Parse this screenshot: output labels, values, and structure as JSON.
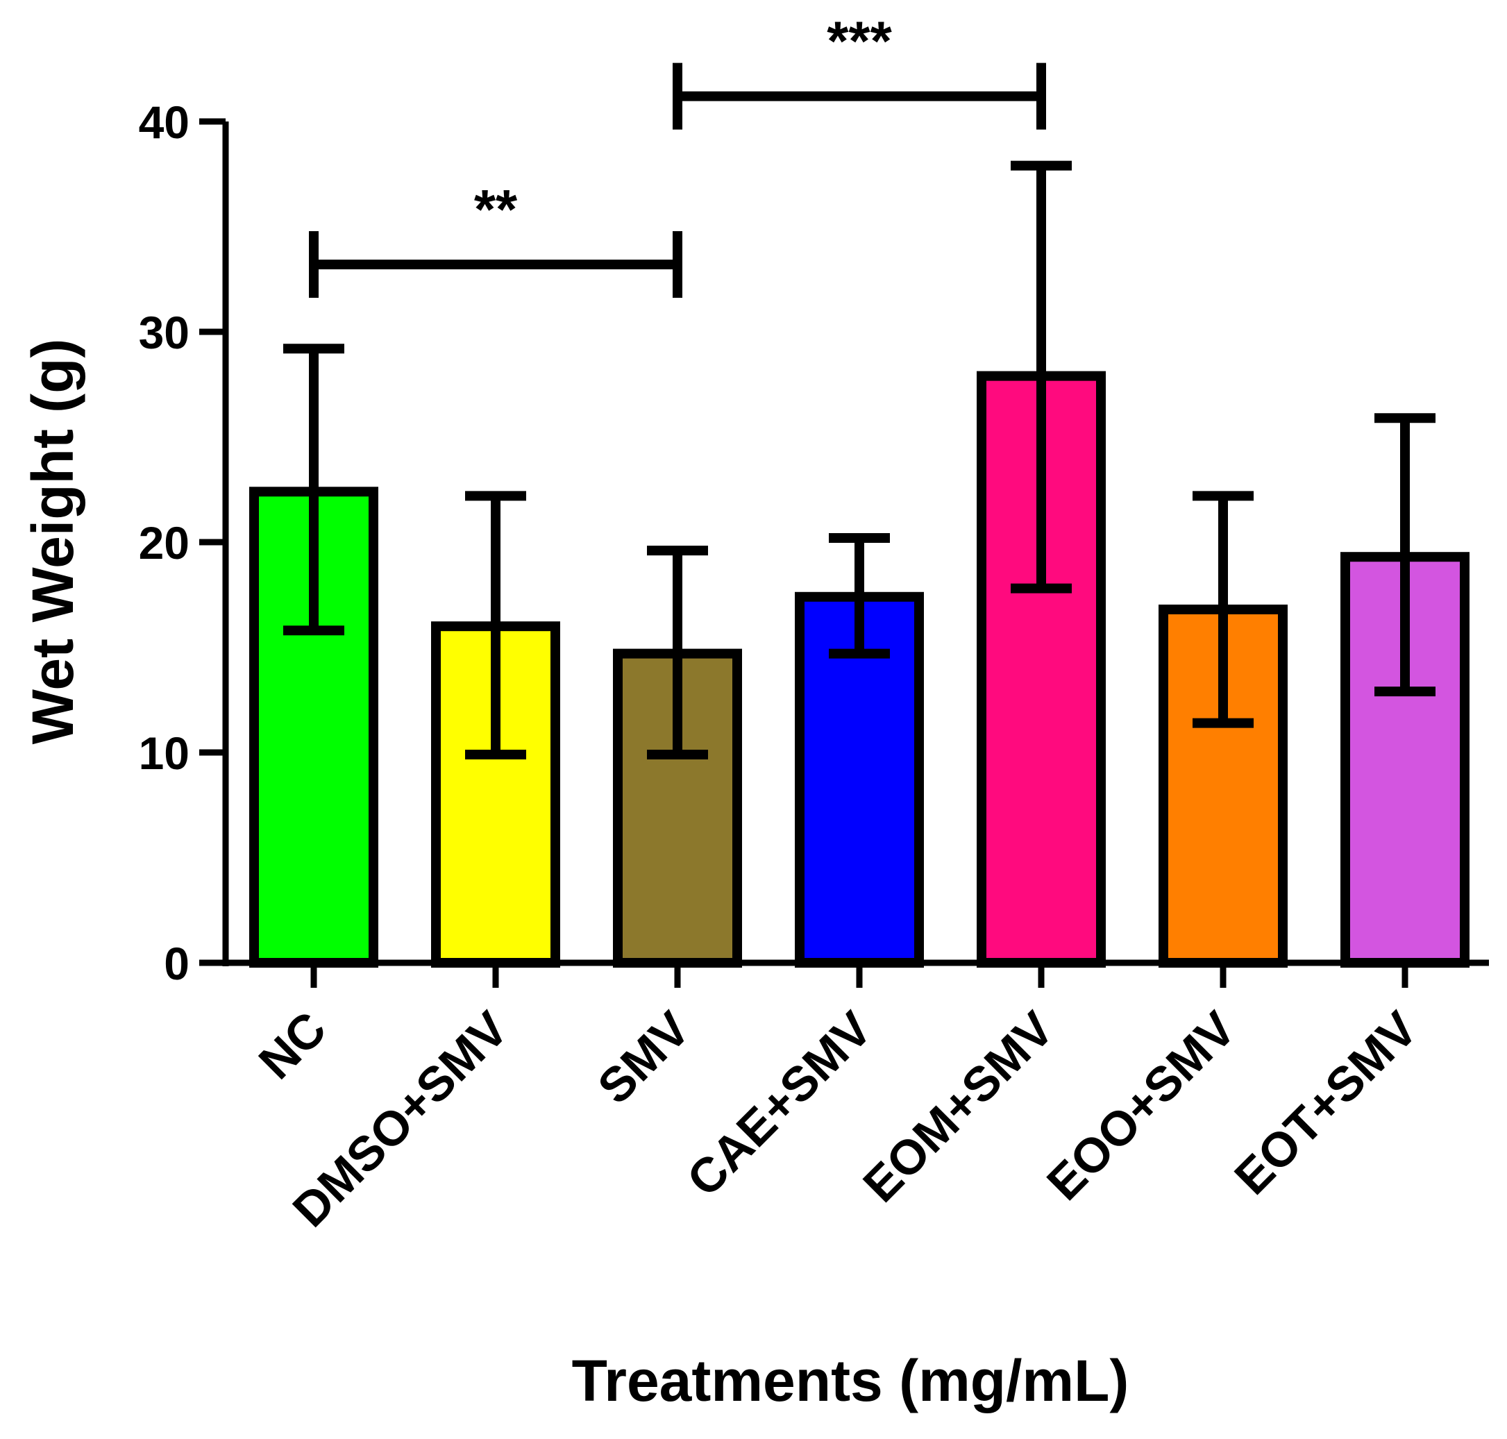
{
  "chart_data": {
    "type": "bar",
    "title": "",
    "xlabel": "Treatments (mg/mL)",
    "ylabel": "Wet Weight (g)",
    "ylim": [
      0,
      40
    ],
    "yticks": [
      0,
      10,
      20,
      30,
      40
    ],
    "categories": [
      "NC",
      "DMSO+SMV",
      "SMV",
      "CAE+SMV",
      "EOM+SMV",
      "EOO+SMV",
      "EOT+SMV"
    ],
    "values": [
      22.4,
      16.0,
      14.7,
      17.4,
      27.9,
      16.8,
      19.3
    ],
    "error_low": [
      15.8,
      9.9,
      9.9,
      14.7,
      17.8,
      11.4,
      12.9
    ],
    "error_high": [
      29.2,
      22.2,
      19.6,
      20.2,
      37.9,
      22.2,
      25.9
    ],
    "colors": [
      "#00FF00",
      "#FFFF00",
      "#8C782C",
      "#0000FF",
      "#FF0A7E",
      "#FF7F00",
      "#D355E0"
    ],
    "significance": [
      {
        "from": "NC",
        "to": "SMV",
        "label": "**",
        "y": 33.2
      },
      {
        "from": "SMV",
        "to": "EOM+SMV",
        "label": "***",
        "y": 41.2
      }
    ]
  }
}
